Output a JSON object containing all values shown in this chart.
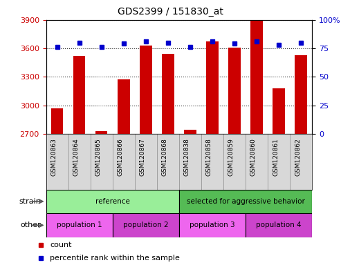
{
  "title": "GDS2399 / 151830_at",
  "samples": [
    "GSM120863",
    "GSM120864",
    "GSM120865",
    "GSM120866",
    "GSM120867",
    "GSM120868",
    "GSM120838",
    "GSM120858",
    "GSM120859",
    "GSM120860",
    "GSM120861",
    "GSM120862"
  ],
  "counts": [
    2970,
    3520,
    2730,
    3270,
    3630,
    3540,
    2740,
    3670,
    3610,
    3900,
    3180,
    3530
  ],
  "percentile_ranks": [
    76,
    80,
    76,
    79,
    81,
    80,
    76,
    81,
    79,
    81,
    78,
    80
  ],
  "ylim_left": [
    2700,
    3900
  ],
  "ylim_right": [
    0,
    100
  ],
  "yticks_left": [
    2700,
    3000,
    3300,
    3600,
    3900
  ],
  "yticks_right": [
    0,
    25,
    50,
    75,
    100
  ],
  "bar_color": "#cc0000",
  "dot_color": "#0000cc",
  "strain_groups": [
    {
      "label": "reference",
      "start": 0,
      "end": 6,
      "color": "#99ee99"
    },
    {
      "label": "selected for aggressive behavior",
      "start": 6,
      "end": 12,
      "color": "#55bb55"
    }
  ],
  "other_groups": [
    {
      "label": "population 1",
      "start": 0,
      "end": 3,
      "color": "#ee66ee"
    },
    {
      "label": "population 2",
      "start": 3,
      "end": 6,
      "color": "#cc44cc"
    },
    {
      "label": "population 3",
      "start": 6,
      "end": 9,
      "color": "#ee66ee"
    },
    {
      "label": "population 4",
      "start": 9,
      "end": 12,
      "color": "#cc44cc"
    }
  ],
  "legend_count_color": "#cc0000",
  "legend_pct_color": "#0000cc",
  "bg_color": "#ffffff",
  "tick_label_color_left": "#cc0000",
  "tick_label_color_right": "#0000cc",
  "xlabels_bg": "#d8d8d8",
  "cell_border_color": "#888888"
}
